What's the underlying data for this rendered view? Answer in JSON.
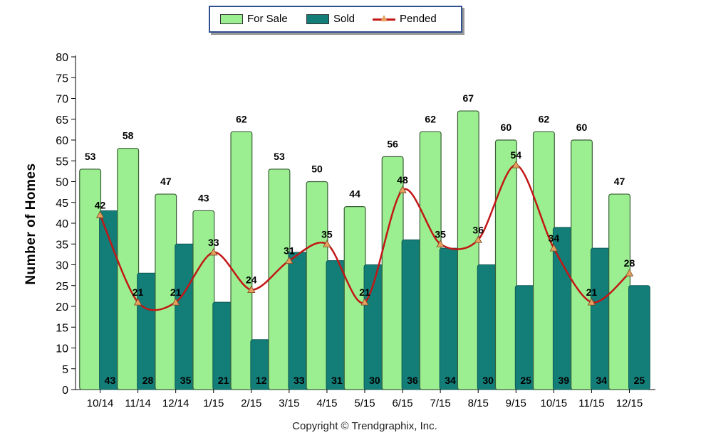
{
  "legend": {
    "for_sale": "For Sale",
    "sold": "Sold",
    "pended": "Pended"
  },
  "copyright": "Copyright © Trendgraphix, Inc.",
  "colors": {
    "for_sale_fill": "#9bef91",
    "for_sale_stroke": "#3a5e36",
    "sold_fill": "#137d78",
    "pended_line": "#c21717",
    "pended_marker": "#e8a060"
  },
  "chart_data": {
    "type": "bar",
    "title": "",
    "xlabel": "",
    "ylabel": "Number of Homes",
    "ylim": [
      0,
      80
    ],
    "yticks": [
      0,
      5,
      10,
      15,
      20,
      25,
      30,
      35,
      40,
      45,
      50,
      55,
      60,
      65,
      70,
      75,
      80
    ],
    "categories": [
      "10/14",
      "11/14",
      "12/14",
      "1/15",
      "2/15",
      "3/15",
      "4/15",
      "5/15",
      "6/15",
      "7/15",
      "8/15",
      "9/15",
      "10/15",
      "11/15",
      "12/15"
    ],
    "series": [
      {
        "name": "For Sale",
        "type": "bar",
        "values": [
          53,
          58,
          47,
          43,
          62,
          53,
          50,
          44,
          56,
          62,
          67,
          60,
          62,
          60,
          47
        ]
      },
      {
        "name": "Sold",
        "type": "bar",
        "values": [
          43,
          28,
          35,
          21,
          12,
          33,
          31,
          30,
          36,
          34,
          30,
          25,
          39,
          34,
          25
        ]
      },
      {
        "name": "Pended",
        "type": "line",
        "values": [
          42,
          21,
          21,
          33,
          24,
          31,
          35,
          21,
          48,
          35,
          36,
          54,
          34,
          21,
          28
        ]
      }
    ],
    "legend_position": "top-center",
    "grid": false
  }
}
